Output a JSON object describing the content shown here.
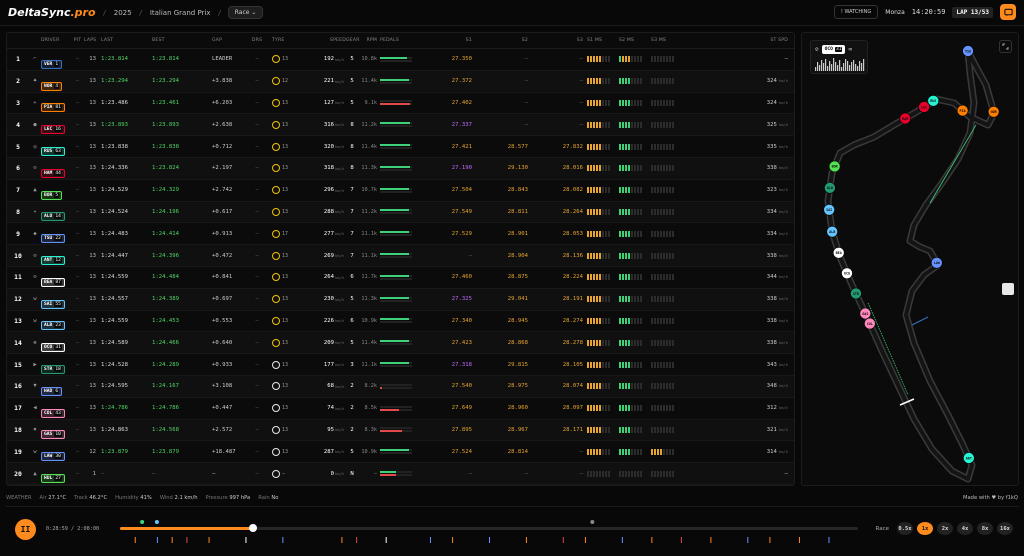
{
  "app": {
    "logo_a": "DeltaSync",
    "logo_b": ".pro",
    "year": "2025",
    "event": "Italian Grand Prix",
    "session": "Race",
    "watching": "! WATCHING",
    "location": "Monza",
    "clock": "14:20:59",
    "lap": "LAP 13/53"
  },
  "table": {
    "headers": {
      "driver": "DRIVER",
      "pit": "PIT",
      "laps": "LAPS",
      "last": "LAST",
      "best": "BEST",
      "gap": "GAP",
      "drs": "DRS",
      "tyre": "TYRE",
      "speed": "SPEED",
      "gear": "GEAR",
      "rpm": "RPM",
      "pedals": "PEDALS",
      "s1": "S1",
      "s2": "S2",
      "s3": "S3",
      "s1ms": "S1 MS",
      "s2ms": "S2 MS",
      "s3ms": "S3 MS",
      "stspd": "ST SPD"
    },
    "rows": [
      {
        "pos": "1",
        "code": "VER",
        "num": "1",
        "color": "#3671c6",
        "pit": "–",
        "laps": "13",
        "last": "1:23.814",
        "lc": "grn",
        "best": "1:23.814",
        "bc": "grn",
        "gap": "LEADER",
        "tyre": "13",
        "th": false,
        "spd": "192",
        "gear": "5",
        "rpm": "10.8k",
        "thr": 0.85,
        "brk": 0,
        "s1": "27.350",
        "s1c": "yel",
        "s2": "–",
        "s2c": "gry",
        "s3": "–",
        "s3c": "gry",
        "ms1": "yyyyy",
        "ms2": "gyyy",
        "ms3": "--------",
        "st": "–",
        "stu": ""
      },
      {
        "pos": "2",
        "code": "NOR",
        "num": "4",
        "color": "#ff8000",
        "pit": "–",
        "laps": "13",
        "last": "1:23.294",
        "lc": "grn",
        "best": "1:23.294",
        "bc": "grn",
        "gap": "+3.838",
        "tyre": "12",
        "th": false,
        "spd": "221",
        "gear": "5",
        "rpm": "11.4k",
        "thr": 0.9,
        "brk": 0,
        "s1": "27.372",
        "s1c": "yel",
        "s2": "–",
        "s2c": "gry",
        "s3": "–",
        "s3c": "gry",
        "ms1": "yyyyy",
        "ms2": "gggg",
        "ms3": "--------",
        "st": "324",
        "stu": "km/h"
      },
      {
        "pos": "3",
        "code": "PIA",
        "num": "81",
        "color": "#ff8000",
        "pit": "–",
        "laps": "13",
        "last": "1:23.486",
        "lc": "wht",
        "best": "1:23.461",
        "bc": "grn",
        "gap": "+6.203",
        "tyre": "13",
        "th": false,
        "spd": "127",
        "gear": "5",
        "rpm": "9.1k",
        "thr": 0,
        "brk": 0.95,
        "s1": "27.402",
        "s1c": "yel",
        "s2": "–",
        "s2c": "gry",
        "s3": "–",
        "s3c": "gry",
        "ms1": "yyyyy",
        "ms2": "gggg",
        "ms3": "--------",
        "st": "324",
        "stu": "km/h"
      },
      {
        "pos": "4",
        "code": "LEC",
        "num": "16",
        "color": "#e8002d",
        "pit": "–",
        "laps": "13",
        "last": "1:23.893",
        "lc": "grn",
        "best": "1:23.893",
        "bc": "grn",
        "gap": "+2.638",
        "tyre": "13",
        "th": false,
        "spd": "316",
        "gear": "8",
        "rpm": "11.2k",
        "thr": 0.95,
        "brk": 0,
        "s1": "27.337",
        "s1c": "pur",
        "s2": "–",
        "s2c": "gry",
        "s3": "–",
        "s3c": "gry",
        "ms1": "yyyyy",
        "ms2": "gggg",
        "ms3": "--------",
        "st": "325",
        "stu": "km/h"
      },
      {
        "pos": "5",
        "code": "RUS",
        "num": "63",
        "color": "#27f4d2",
        "pit": "–",
        "laps": "13",
        "last": "1:23.838",
        "lc": "wht",
        "best": "1:23.838",
        "bc": "grn",
        "gap": "+0.712",
        "tyre": "13",
        "th": false,
        "spd": "320",
        "gear": "8",
        "rpm": "11.4k",
        "thr": 0.95,
        "brk": 0,
        "s1": "27.421",
        "s1c": "yel",
        "s2": "28.577",
        "s2c": "yel",
        "s3": "27.832",
        "s3c": "yel",
        "ms1": "yyyyy",
        "ms2": "gggg",
        "ms3": "--------",
        "st": "335",
        "stu": "km/h"
      },
      {
        "pos": "6",
        "code": "HAM",
        "num": "44",
        "color": "#e8002d",
        "pit": "–",
        "laps": "13",
        "last": "1:24.336",
        "lc": "wht",
        "best": "1:23.824",
        "bc": "grn",
        "gap": "+2.197",
        "tyre": "13",
        "th": false,
        "spd": "318",
        "gear": "8",
        "rpm": "11.3k",
        "thr": 0.95,
        "brk": 0,
        "s1": "27.190",
        "s1c": "pur",
        "s2": "29.130",
        "s2c": "yel",
        "s3": "28.016",
        "s3c": "yel",
        "ms1": "yyyyy",
        "ms2": "gggg",
        "ms3": "--------",
        "st": "338",
        "stu": "km/h"
      },
      {
        "pos": "7",
        "code": "BOR",
        "num": "5",
        "color": "#52e252",
        "pit": "–",
        "laps": "13",
        "last": "1:24.529",
        "lc": "wht",
        "best": "1:24.329",
        "bc": "grn",
        "gap": "+2.742",
        "tyre": "13",
        "th": false,
        "spd": "296",
        "gear": "7",
        "rpm": "10.7k",
        "thr": 0.9,
        "brk": 0,
        "s1": "27.504",
        "s1c": "yel",
        "s2": "28.843",
        "s2c": "yel",
        "s3": "28.082",
        "s3c": "yel",
        "ms1": "yyyyy",
        "ms2": "gggg",
        "ms3": "--------",
        "st": "323",
        "stu": "km/h"
      },
      {
        "pos": "8",
        "code": "ALO",
        "num": "14",
        "color": "#229971",
        "pit": "–",
        "laps": "13",
        "last": "1:24.524",
        "lc": "wht",
        "best": "1:24.196",
        "bc": "grn",
        "gap": "+0.617",
        "tyre": "13",
        "th": false,
        "spd": "288",
        "gear": "7",
        "rpm": "11.2k",
        "thr": 0.9,
        "brk": 0,
        "s1": "27.549",
        "s1c": "yel",
        "s2": "28.811",
        "s2c": "yel",
        "s3": "28.264",
        "s3c": "yel",
        "ms1": "yyyyy",
        "ms2": "gggg",
        "ms3": "--------",
        "st": "334",
        "stu": "km/h"
      },
      {
        "pos": "9",
        "code": "TSU",
        "num": "22",
        "color": "#6692ff",
        "pit": "–",
        "laps": "13",
        "last": "1:24.483",
        "lc": "wht",
        "best": "1:24.414",
        "bc": "grn",
        "gap": "+0.913",
        "tyre": "17",
        "th": false,
        "spd": "277",
        "gear": "7",
        "rpm": "11.1k",
        "thr": 0.9,
        "brk": 0,
        "s1": "27.529",
        "s1c": "yel",
        "s2": "28.901",
        "s2c": "yel",
        "s3": "28.053",
        "s3c": "yel",
        "ms1": "yyyyy",
        "ms2": "gggg",
        "ms3": "--------",
        "st": "334",
        "stu": "km/h"
      },
      {
        "pos": "10",
        "code": "ANT",
        "num": "12",
        "color": "#27f4d2",
        "pit": "–",
        "laps": "13",
        "last": "1:24.447",
        "lc": "wht",
        "best": "1:24.396",
        "bc": "grn",
        "gap": "+0.472",
        "tyre": "13",
        "th": false,
        "spd": "269",
        "gear": "7",
        "rpm": "11.1k",
        "thr": 0.9,
        "brk": 0,
        "s1": "–",
        "s1c": "gry",
        "s2": "28.904",
        "s2c": "yel",
        "s3": "28.136",
        "s3c": "yel",
        "ms1": "yyyyy",
        "ms2": "gggg",
        "ms3": "--------",
        "st": "338",
        "stu": "km/h"
      },
      {
        "pos": "11",
        "code": "BEA",
        "num": "87",
        "color": "#ffffff",
        "pit": "–",
        "laps": "13",
        "last": "1:24.559",
        "lc": "wht",
        "best": "1:24.484",
        "bc": "grn",
        "gap": "+0.841",
        "tyre": "13",
        "th": false,
        "spd": "264",
        "gear": "6",
        "rpm": "11.7k",
        "thr": 0.9,
        "brk": 0,
        "s1": "27.460",
        "s1c": "yel",
        "s2": "28.875",
        "s2c": "yel",
        "s3": "28.224",
        "s3c": "yel",
        "ms1": "yyyyy",
        "ms2": "gggg",
        "ms3": "--------",
        "st": "344",
        "stu": "km/h"
      },
      {
        "pos": "12",
        "code": "SAI",
        "num": "55",
        "color": "#64c4ff",
        "pit": "–",
        "laps": "13",
        "last": "1:24.557",
        "lc": "wht",
        "best": "1:24.389",
        "bc": "grn",
        "gap": "+0.697",
        "tyre": "13",
        "th": false,
        "spd": "230",
        "gear": "5",
        "rpm": "11.3k",
        "thr": 0.9,
        "brk": 0,
        "s1": "27.325",
        "s1c": "pur",
        "s2": "29.041",
        "s2c": "yel",
        "s3": "28.191",
        "s3c": "yel",
        "ms1": "yyyyy",
        "ms2": "gggg",
        "ms3": "--------",
        "st": "338",
        "stu": "km/h"
      },
      {
        "pos": "13",
        "code": "ALB",
        "num": "23",
        "color": "#64c4ff",
        "pit": "–",
        "laps": "13",
        "last": "1:24.559",
        "lc": "wht",
        "best": "1:24.453",
        "bc": "grn",
        "gap": "+0.553",
        "tyre": "13",
        "th": false,
        "spd": "226",
        "gear": "6",
        "rpm": "10.9k",
        "thr": 0.9,
        "brk": 0,
        "s1": "27.340",
        "s1c": "yel",
        "s2": "28.945",
        "s2c": "yel",
        "s3": "28.274",
        "s3c": "yel",
        "ms1": "yyyyy",
        "ms2": "gggg",
        "ms3": "--------",
        "st": "338",
        "stu": "km/h"
      },
      {
        "pos": "14",
        "code": "OCO",
        "num": "31",
        "color": "#ffffff",
        "pit": "–",
        "laps": "13",
        "last": "1:24.589",
        "lc": "wht",
        "best": "1:24.466",
        "bc": "grn",
        "gap": "+0.640",
        "tyre": "13",
        "th": false,
        "spd": "209",
        "gear": "5",
        "rpm": "11.4k",
        "thr": 0.9,
        "brk": 0,
        "s1": "27.423",
        "s1c": "yel",
        "s2": "28.868",
        "s2c": "yel",
        "s3": "28.278",
        "s3c": "yel",
        "ms1": "yyyyy",
        "ms2": "gggg",
        "ms3": "--------",
        "st": "338",
        "stu": "km/h"
      },
      {
        "pos": "15",
        "code": "STR",
        "num": "18",
        "color": "#229971",
        "pit": "–",
        "laps": "13",
        "last": "1:24.528",
        "lc": "wht",
        "best": "1:24.289",
        "bc": "grn",
        "gap": "+0.933",
        "tyre": "13",
        "th": true,
        "spd": "177",
        "gear": "3",
        "rpm": "11.1k",
        "thr": 0.9,
        "brk": 0,
        "s1": "27.318",
        "s1c": "pur",
        "s2": "29.815",
        "s2c": "yel",
        "s3": "28.105",
        "s3c": "yel",
        "ms1": "yyyyy",
        "ms2": "gggg",
        "ms3": "--------",
        "st": "343",
        "stu": "km/h"
      },
      {
        "pos": "16",
        "code": "HAD",
        "num": "6",
        "color": "#6692ff",
        "pit": "–",
        "laps": "13",
        "last": "1:24.595",
        "lc": "wht",
        "best": "1:24.167",
        "bc": "grn",
        "gap": "+3.108",
        "tyre": "13",
        "th": true,
        "spd": "68",
        "gear": "2",
        "rpm": "8.2k",
        "thr": 0,
        "brk": 0.05,
        "s1": "27.540",
        "s1c": "yel",
        "s2": "28.975",
        "s2c": "yel",
        "s3": "28.074",
        "s3c": "yel",
        "ms1": "yyyyy",
        "ms2": "gggg",
        "ms3": "--------",
        "st": "348",
        "stu": "km/h"
      },
      {
        "pos": "17",
        "code": "COL",
        "num": "43",
        "color": "#ff87bc",
        "pit": "–",
        "laps": "13",
        "last": "1:24.786",
        "lc": "grn",
        "best": "1:24.786",
        "bc": "grn",
        "gap": "+0.447",
        "tyre": "13",
        "th": true,
        "spd": "74",
        "gear": "2",
        "rpm": "8.5k",
        "thr": 0,
        "brk": 0.6,
        "s1": "27.649",
        "s1c": "yel",
        "s2": "28.960",
        "s2c": "yel",
        "s3": "28.097",
        "s3c": "yel",
        "ms1": "yyyyy",
        "ms2": "gggg",
        "ms3": "--------",
        "st": "312",
        "stu": "km/h"
      },
      {
        "pos": "18",
        "code": "GAS",
        "num": "10",
        "color": "#ff87bc",
        "pit": "–",
        "laps": "13",
        "last": "1:24.863",
        "lc": "wht",
        "best": "1:24.568",
        "bc": "grn",
        "gap": "+2.572",
        "tyre": "13",
        "th": true,
        "spd": "95",
        "gear": "2",
        "rpm": "8.3k",
        "thr": 0,
        "brk": 0.7,
        "s1": "27.895",
        "s1c": "yel",
        "s2": "28.967",
        "s2c": "yel",
        "s3": "28.171",
        "s3c": "yel",
        "ms1": "yyyyy",
        "ms2": "gggg",
        "ms3": "--------",
        "st": "321",
        "stu": "km/h"
      },
      {
        "pos": "19",
        "code": "LAW",
        "num": "30",
        "color": "#6692ff",
        "pit": "–",
        "laps": "12",
        "last": "1:23.879",
        "lc": "grn",
        "best": "1:23.879",
        "bc": "grn",
        "gap": "+18.487",
        "tyre": "13",
        "th": true,
        "spd": "287",
        "gear": "5",
        "rpm": "10.9k",
        "thr": 0.9,
        "brk": 0,
        "s1": "27.524",
        "s1c": "yel",
        "s2": "28.814",
        "s2c": "yel",
        "s3": "–",
        "s3c": "gry",
        "ms1": "yyyyy",
        "ms2": "gggg",
        "ms3": "yyyy----",
        "st": "314",
        "stu": "km/h"
      },
      {
        "pos": "20",
        "code": "HUL",
        "num": "27",
        "color": "#52e252",
        "pit": "–",
        "laps": "1",
        "last": "–",
        "lc": "gry",
        "best": "–",
        "bc": "gry",
        "gap": "–",
        "tyre": "–",
        "th": true,
        "spd": "0",
        "gear": "N",
        "rpm": "–",
        "thr": 0.5,
        "brk": 0.5,
        "s1": "–",
        "s1c": "gry",
        "s2": "–",
        "s2c": "gry",
        "s3": "–",
        "s3c": "gry",
        "ms1": "-----",
        "ms2": "----",
        "ms3": "--------",
        "st": "–",
        "stu": ""
      }
    ]
  },
  "map": {
    "car_code": "OCO",
    "car_num": "31",
    "dots": [
      {
        "lbl": "TSU",
        "c": "#6692ff",
        "t": 0.0
      },
      {
        "lbl": "NOR",
        "c": "#ff8000",
        "t": 0.06
      },
      {
        "lbl": "PIA",
        "c": "#ff8000",
        "t": 0.1
      },
      {
        "lbl": "RUS",
        "c": "#27f4d2",
        "t": 0.13
      },
      {
        "lbl": "LEC",
        "c": "#e8002d",
        "t": 0.14
      },
      {
        "lbl": "HAM",
        "c": "#e8002d",
        "t": 0.16
      },
      {
        "lbl": "BOR",
        "c": "#52e252",
        "t": 0.24
      },
      {
        "lbl": "ALO",
        "c": "#229971",
        "t": 0.26
      },
      {
        "lbl": "SAI",
        "c": "#64c4ff",
        "t": 0.28
      },
      {
        "lbl": "ALB",
        "c": "#64c4ff",
        "t": 0.3
      },
      {
        "lbl": "BEA",
        "c": "#ffffff",
        "t": 0.32
      },
      {
        "lbl": "OCO",
        "c": "#ffffff",
        "t": 0.34
      },
      {
        "lbl": "STR",
        "c": "#229971",
        "t": 0.36
      },
      {
        "lbl": "GAS",
        "c": "#ff87bc",
        "t": 0.38
      },
      {
        "lbl": "COL",
        "c": "#ff87bc",
        "t": 0.39
      },
      {
        "lbl": "ANT",
        "c": "#27f4d2",
        "t": 0.58
      },
      {
        "lbl": "LAW",
        "c": "#6692ff",
        "t": 0.78
      }
    ]
  },
  "weather": {
    "air_l": "Air",
    "air": "27.1°C",
    "track_l": "Track",
    "track": "46.2°C",
    "hum_l": "Humidity",
    "hum": "41%",
    "wind_l": "Wind",
    "wind": "2.1 km/h",
    "pres_l": "Pressure",
    "pres": "997 hPa",
    "rain_l": "Rain",
    "rain": "No"
  },
  "footer": {
    "made": "Made with ♥ by f1kQ"
  },
  "playback": {
    "time": "0:28:59 / 2:08:00",
    "progress": 0.18,
    "race_label": "Race",
    "speeds": [
      "0.5x",
      "1x",
      "2x",
      "4x",
      "8x",
      "16x"
    ],
    "active": "1x"
  }
}
